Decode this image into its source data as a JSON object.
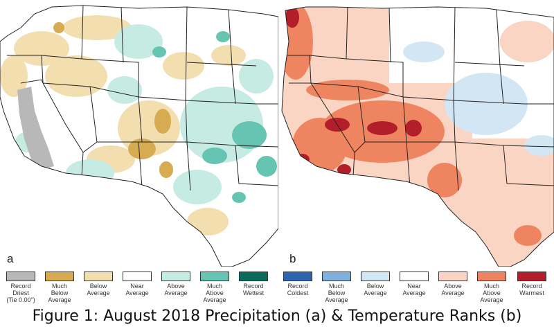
{
  "panels": [
    {
      "letter": "a",
      "description_key": "precipitation"
    },
    {
      "letter": "b",
      "description_key": "temperature"
    }
  ],
  "legend": [
    {
      "label": "Record\nDriest\n(Tie 0.00\")",
      "color": "#b8b8b8"
    },
    {
      "label": "Much\nBelow\nAverage",
      "color": "#d6ab52"
    },
    {
      "label": "Below\nAverage",
      "color": "#f3deb0"
    },
    {
      "label": "Near\nAverage",
      "color": "#ffffff"
    },
    {
      "label": "Above\nAverage",
      "color": "#c6ebe2"
    },
    {
      "label": "Much\nAbove\nAverage",
      "color": "#66c4b2"
    },
    {
      "label": "Record\nWettest",
      "color": "#0a6b58"
    },
    {
      "label": "Record\nColdest",
      "color": "#2e63b0"
    },
    {
      "label": "Much\nBelow\nAverage",
      "color": "#7fb1dc"
    },
    {
      "label": "Below\nAverage",
      "color": "#d3e6f3"
    },
    {
      "label": "Near\nAverage",
      "color": "#ffffff"
    },
    {
      "label": "Above\nAverage",
      "color": "#fbd5c3"
    },
    {
      "label": "Much\nAbove\nAverage",
      "color": "#ef8560"
    },
    {
      "label": "Record\nWarmest",
      "color": "#b21e2a"
    }
  ],
  "caption": "Figure 1: August 2018 Precipitation (a) & Temperature Ranks (b)"
}
